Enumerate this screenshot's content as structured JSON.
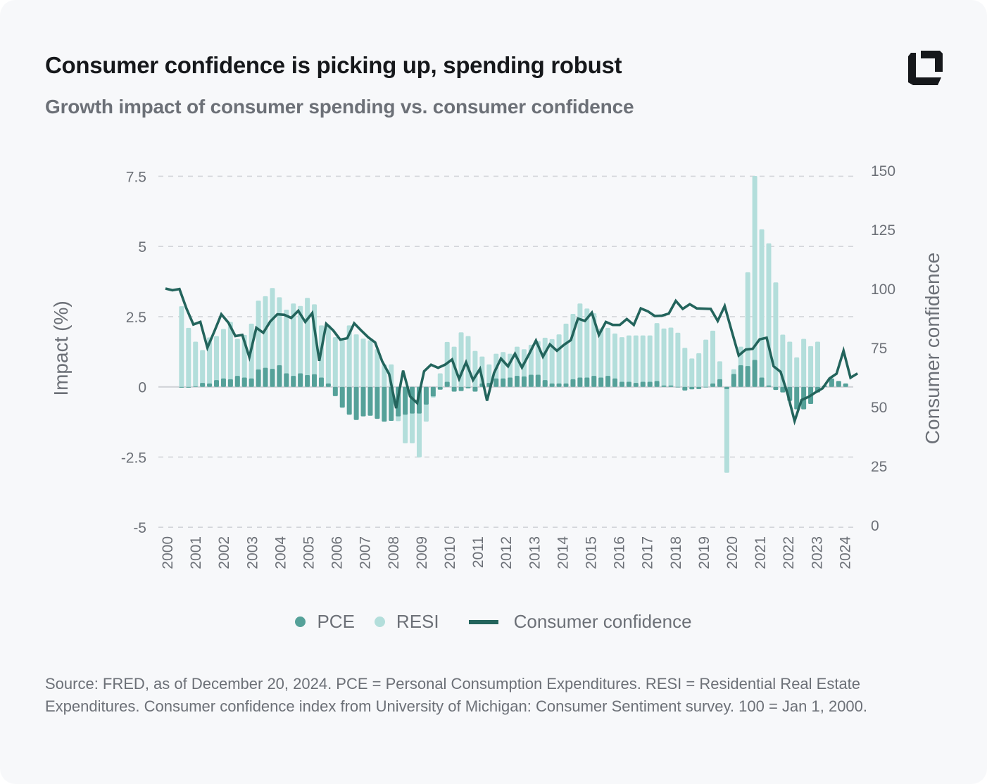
{
  "title": "Consumer confidence is picking up, spending robust",
  "subtitle": "Growth impact of consumer spending vs. consumer confidence",
  "logo": "brand-logo",
  "footer": "Source: FRED, as of December 20, 2024. PCE = Personal Consumption Expenditures. RESI = Residential Real Estate Expenditures. Consumer confidence index from University of Michigan: Consumer Sentiment survey. 100 = Jan 1, 2000.",
  "colors": {
    "pce": "#55a199",
    "resi": "#b3dedb",
    "line": "#23645c",
    "grid": "#d3d5da",
    "text": "#6c7077"
  },
  "chart_data": {
    "type": "bar+line",
    "ylabel": "Impact (%)",
    "y2label": "Consumer confidence",
    "ylim": [
      -5,
      7.5
    ],
    "y2lim": [
      0,
      150
    ],
    "yticks": [
      "7.5",
      "5",
      "2.5",
      "0",
      "-2.5",
      "-5"
    ],
    "yticks_values": [
      7.5,
      5,
      2.5,
      0,
      -2.5,
      -5
    ],
    "y2ticks": [
      "150",
      "125",
      "100",
      "75",
      "50",
      "25",
      "0"
    ],
    "y2ticks_values": [
      150,
      125,
      100,
      75,
      50,
      25,
      0
    ],
    "xticks": [
      "2000",
      "2001",
      "2002",
      "2003",
      "2004",
      "2005",
      "2006",
      "2007",
      "2008",
      "2009",
      "2010",
      "2011",
      "2012",
      "2013",
      "2014",
      "2015",
      "2016",
      "2017",
      "2018",
      "2019",
      "2020",
      "2021",
      "2022",
      "2023",
      "2024"
    ],
    "grid": true,
    "legend_position": "bottom",
    "x": [
      "2000Q1",
      "2000Q2",
      "2000Q3",
      "2000Q4",
      "2001Q1",
      "2001Q2",
      "2001Q3",
      "2001Q4",
      "2002Q1",
      "2002Q2",
      "2002Q3",
      "2002Q4",
      "2003Q1",
      "2003Q2",
      "2003Q3",
      "2003Q4",
      "2004Q1",
      "2004Q2",
      "2004Q3",
      "2004Q4",
      "2005Q1",
      "2005Q2",
      "2005Q3",
      "2005Q4",
      "2006Q1",
      "2006Q2",
      "2006Q3",
      "2006Q4",
      "2007Q1",
      "2007Q2",
      "2007Q3",
      "2007Q4",
      "2008Q1",
      "2008Q2",
      "2008Q3",
      "2008Q4",
      "2009Q1",
      "2009Q2",
      "2009Q3",
      "2009Q4",
      "2010Q1",
      "2010Q2",
      "2010Q3",
      "2010Q4",
      "2011Q1",
      "2011Q2",
      "2011Q3",
      "2011Q4",
      "2012Q1",
      "2012Q2",
      "2012Q3",
      "2012Q4",
      "2013Q1",
      "2013Q2",
      "2013Q3",
      "2013Q4",
      "2014Q1",
      "2014Q2",
      "2014Q3",
      "2014Q4",
      "2015Q1",
      "2015Q2",
      "2015Q3",
      "2015Q4",
      "2016Q1",
      "2016Q2",
      "2016Q3",
      "2016Q4",
      "2017Q1",
      "2017Q2",
      "2017Q3",
      "2017Q4",
      "2018Q1",
      "2018Q2",
      "2018Q3",
      "2018Q4",
      "2019Q1",
      "2019Q2",
      "2019Q3",
      "2019Q4",
      "2020Q1",
      "2020Q2",
      "2020Q3",
      "2020Q4",
      "2021Q1",
      "2021Q2",
      "2021Q3",
      "2021Q4",
      "2022Q1",
      "2022Q2",
      "2022Q3",
      "2022Q4",
      "2023Q1",
      "2023Q2",
      "2023Q3",
      "2023Q4",
      "2024Q1",
      "2024Q2",
      "2024Q3",
      "2024Q4"
    ],
    "series": [
      {
        "name": "PCE",
        "type": "bar",
        "axis": "left",
        "values": [
          null,
          null,
          -0.03,
          -0.03,
          0.02,
          0.14,
          0.12,
          0.24,
          0.3,
          0.27,
          0.39,
          0.33,
          0.3,
          0.62,
          0.68,
          0.64,
          0.77,
          0.48,
          0.39,
          0.48,
          0.42,
          0.45,
          0.33,
          0.12,
          -0.33,
          -0.74,
          -0.99,
          -1.18,
          -1.05,
          -1.03,
          -1.14,
          -1.24,
          -1.21,
          -1.05,
          -0.99,
          -0.95,
          -0.95,
          -0.63,
          -0.34,
          -0.1,
          0.18,
          -0.17,
          -0.15,
          -0.05,
          -0.17,
          0.12,
          0.14,
          0.3,
          0.3,
          0.33,
          0.39,
          0.37,
          0.43,
          0.43,
          0.24,
          0.12,
          0.12,
          0.12,
          0.27,
          0.33,
          0.33,
          0.39,
          0.33,
          0.39,
          0.3,
          0.18,
          0.18,
          0.14,
          0.18,
          0.18,
          0.21,
          0.05,
          0.05,
          0.0,
          -0.13,
          -0.09,
          -0.08,
          0.0,
          0.12,
          0.27,
          -0.08,
          0.46,
          0.77,
          0.74,
          0.96,
          0.33,
          0.05,
          -0.11,
          -0.2,
          -0.5,
          -0.8,
          -0.8,
          -0.61,
          -0.2,
          0.05,
          0.3,
          0.21,
          0.12,
          null,
          null
        ]
      },
      {
        "name": "RESI",
        "type": "bar",
        "axis": "left",
        "values": [
          null,
          null,
          2.87,
          2.1,
          1.61,
          1.31,
          1.76,
          1.81,
          2.06,
          2.31,
          1.71,
          1.85,
          2.25,
          3.07,
          3.23,
          3.52,
          3.19,
          2.75,
          2.97,
          2.88,
          3.17,
          2.94,
          2.19,
          2.2,
          1.77,
          1.66,
          2.19,
          1.87,
          1.72,
          1.66,
          1.34,
          0.8,
          0.8,
          -1.22,
          -2.01,
          -2.01,
          -2.51,
          -1.24,
          -0.38,
          0.48,
          1.6,
          1.43,
          1.94,
          1.81,
          1.28,
          1.08,
          0.8,
          1.18,
          1.24,
          1.18,
          1.43,
          1.34,
          1.5,
          1.63,
          1.75,
          1.7,
          1.87,
          2.25,
          2.6,
          2.97,
          2.79,
          2.62,
          2.08,
          2.1,
          1.9,
          1.77,
          1.83,
          1.83,
          1.83,
          1.83,
          2.27,
          2.08,
          2.11,
          1.93,
          1.39,
          1.01,
          1.2,
          1.68,
          2.0,
          0.91,
          -3.06,
          0.63,
          1.43,
          4.08,
          7.51,
          5.61,
          5.11,
          3.72,
          1.86,
          1.61,
          1.05,
          1.71,
          1.45,
          1.61,
          0.05,
          0.3,
          0.21,
          0.12,
          null,
          null
        ]
      },
      {
        "name": "Consumer confidence",
        "type": "line",
        "axis": "right",
        "values": [
          100.0,
          99.3,
          99.8,
          91.6,
          84.8,
          85.9,
          75.0,
          81.9,
          89.1,
          85.6,
          79.9,
          80.4,
          71.0,
          83.4,
          81.3,
          86.1,
          89.1,
          88.9,
          87.6,
          90.6,
          85.9,
          89.6,
          69.4,
          85.1,
          82.3,
          78.4,
          79.0,
          85.3,
          82.3,
          79.4,
          77.2,
          69.3,
          63.8,
          49.4,
          65.3,
          54.4,
          51.6,
          65.0,
          67.8,
          66.5,
          67.8,
          70.0,
          61.8,
          68.8,
          61.3,
          66.0,
          52.6,
          64.3,
          70.4,
          67.1,
          72.4,
          66.6,
          72.2,
          78.0,
          71.2,
          76.4,
          73.7,
          76.2,
          78.2,
          87.3,
          86.3,
          89.8,
          80.4,
          85.9,
          84.6,
          84.6,
          87.1,
          84.6,
          91.6,
          90.4,
          88.4,
          88.5,
          89.4,
          94.8,
          91.4,
          93.4,
          91.6,
          91.5,
          91.4,
          86.3,
          92.6,
          82.1,
          71.7,
          74.2,
          74.5,
          78.5,
          79.2,
          67.1,
          64.8,
          55.4,
          44.0,
          52.9,
          54.2,
          56.1,
          57.8,
          62.0,
          64.0,
          73.7,
          62.3,
          64.1
        ]
      }
    ],
    "legend": [
      "PCE",
      "RESI",
      "Consumer confidence"
    ]
  }
}
